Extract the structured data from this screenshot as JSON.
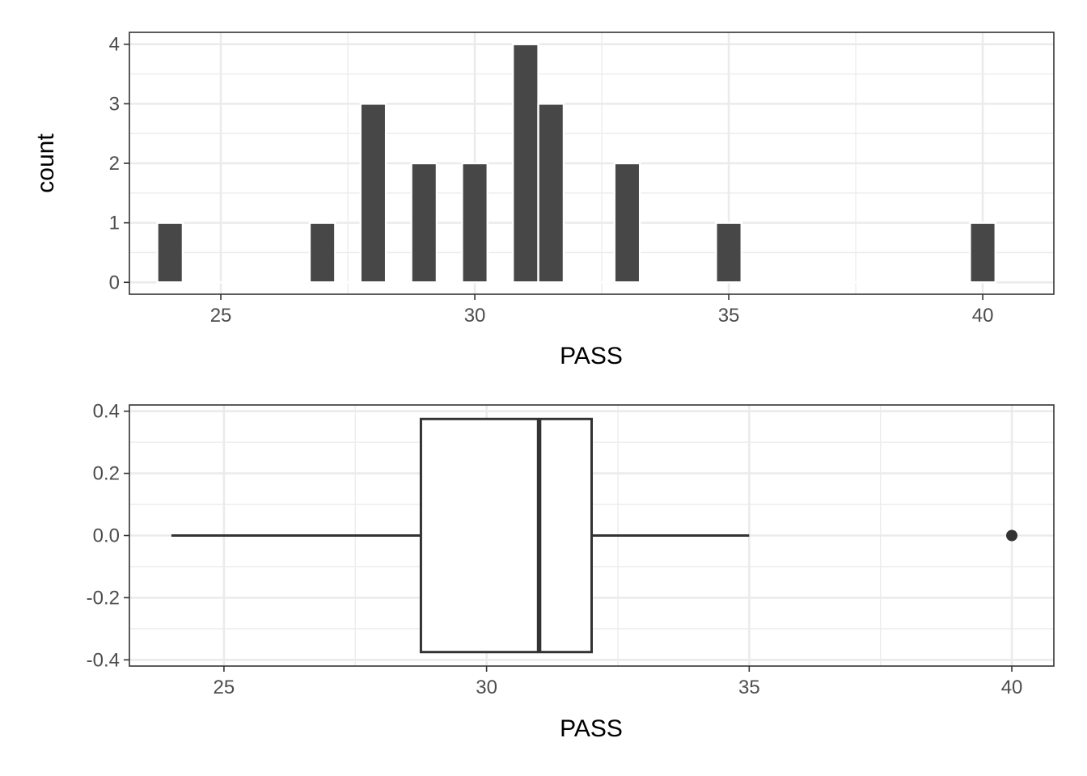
{
  "chart_data": [
    {
      "type": "histogram",
      "xlabel": "PASS",
      "ylabel": "count",
      "xlim": [
        23.2,
        41.4
      ],
      "ylim": [
        -0.2,
        4.2
      ],
      "x_ticks": [
        25,
        30,
        35,
        40
      ],
      "y_ticks": [
        0,
        1,
        2,
        3,
        4
      ],
      "bin_width": 0.5,
      "bins": [
        {
          "x": 24,
          "count": 1
        },
        {
          "x": 24.5,
          "count": 0
        },
        {
          "x": 25,
          "count": 0
        },
        {
          "x": 25.5,
          "count": 0
        },
        {
          "x": 26,
          "count": 0
        },
        {
          "x": 26.5,
          "count": 0
        },
        {
          "x": 27,
          "count": 1
        },
        {
          "x": 27.5,
          "count": 0
        },
        {
          "x": 28,
          "count": 3
        },
        {
          "x": 28.5,
          "count": 0
        },
        {
          "x": 29,
          "count": 2
        },
        {
          "x": 29.5,
          "count": 0
        },
        {
          "x": 30,
          "count": 2
        },
        {
          "x": 30.5,
          "count": 0
        },
        {
          "x": 31,
          "count": 4
        },
        {
          "x": 31.5,
          "count": 3
        },
        {
          "x": 32,
          "count": 0
        },
        {
          "x": 32.5,
          "count": 0
        },
        {
          "x": 33,
          "count": 2
        },
        {
          "x": 33.5,
          "count": 0
        },
        {
          "x": 34,
          "count": 0
        },
        {
          "x": 34.5,
          "count": 0
        },
        {
          "x": 35,
          "count": 1
        },
        {
          "x": 35.5,
          "count": 0
        },
        {
          "x": 36,
          "count": 0
        },
        {
          "x": 36.5,
          "count": 0
        },
        {
          "x": 37,
          "count": 0
        },
        {
          "x": 37.5,
          "count": 0
        },
        {
          "x": 38,
          "count": 0
        },
        {
          "x": 38.5,
          "count": 0
        },
        {
          "x": 39,
          "count": 0
        },
        {
          "x": 39.5,
          "count": 0
        },
        {
          "x": 40,
          "count": 1
        }
      ],
      "bar_color": "#474747",
      "grid": true
    },
    {
      "type": "boxplot",
      "xlabel": "PASS",
      "xlim": [
        23.2,
        40.8
      ],
      "ylim": [
        -0.42,
        0.42
      ],
      "x_ticks": [
        25,
        30,
        35,
        40
      ],
      "y_ticks": [
        "0.4",
        "0.2",
        "0.0",
        "-0.2",
        "-0.4"
      ],
      "y_tick_values": [
        0.4,
        0.2,
        0,
        -0.2,
        -0.4
      ],
      "box": {
        "whisker_low": 24,
        "q1": 28.75,
        "median": 31,
        "q3": 32,
        "whisker_high": 35,
        "outliers": [
          40
        ],
        "half_height": 0.375
      },
      "grid": true
    }
  ]
}
